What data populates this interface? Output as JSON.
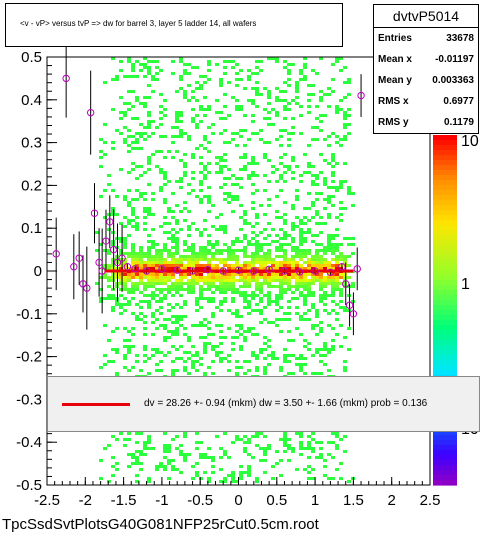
{
  "title": "<v - vP>     versus  tvP =>  dw for barrel 3, layer 5 ladder 14, all wafers",
  "stats": {
    "name": "dvtvP5014",
    "rows": [
      {
        "label": "Entries",
        "value": "33678"
      },
      {
        "label": "Mean x",
        "value": "-0.01197"
      },
      {
        "label": "Mean y",
        "value": "0.003363"
      },
      {
        "label": "RMS x",
        "value": "0.6977"
      },
      {
        "label": "RMS y",
        "value": "0.1179"
      }
    ]
  },
  "fit_label": "dv =   28.26 +-  0.94 (mkm) dw =    3.50 +-  1.66 (mkm) prob = 0.136",
  "footer": "TpcSsdSvtPlotsG40G081NFP25rCut0.5cm.root",
  "colors": {
    "fit_line": "#e8000b",
    "marker": "#c000c0"
  },
  "chart_data": {
    "type": "heatmap",
    "xlim": [
      -2.5,
      2.5
    ],
    "ylim": [
      -0.5,
      0.5
    ],
    "x_ticks": [
      "-2.5",
      "-2",
      "-1.5",
      "-1",
      "-0.5",
      "0",
      "0.5",
      "1",
      "1.5",
      "2",
      "2.5"
    ],
    "y_ticks": [
      "-0.5",
      "-0.4",
      "-0.3",
      "-0.2",
      "-0.1",
      "0",
      "0.1",
      "0.2",
      "0.3",
      "0.4",
      "0.5"
    ],
    "z_ticks": [
      "10",
      "1",
      "10"
    ],
    "fit_line": {
      "x": [
        -1.75,
        1.5
      ],
      "y": [
        0.0,
        0.0
      ]
    },
    "profile_points": [
      {
        "x": -2.38,
        "y": 0.04
      },
      {
        "x": -2.25,
        "y": 0.45
      },
      {
        "x": -2.15,
        "y": 0.01
      },
      {
        "x": -2.08,
        "y": 0.03
      },
      {
        "x": -2.03,
        "y": -0.03
      },
      {
        "x": -1.98,
        "y": -0.04
      },
      {
        "x": -1.93,
        "y": 0.37
      },
      {
        "x": -1.88,
        "y": 0.135
      },
      {
        "x": -1.82,
        "y": 0.02
      },
      {
        "x": -1.78,
        "y": 0.0
      },
      {
        "x": -1.73,
        "y": 0.07
      },
      {
        "x": -1.68,
        "y": 0.115
      },
      {
        "x": -1.63,
        "y": 0.05
      },
      {
        "x": -1.58,
        "y": 0.02
      },
      {
        "x": -1.52,
        "y": 0.03
      },
      {
        "x": -1.45,
        "y": 0.01
      },
      {
        "x": -1.35,
        "y": 0.005
      },
      {
        "x": -1.2,
        "y": 0.0
      },
      {
        "x": -1.0,
        "y": 0.005
      },
      {
        "x": -0.8,
        "y": 0.002
      },
      {
        "x": -0.6,
        "y": 0.0
      },
      {
        "x": -0.4,
        "y": 0.003
      },
      {
        "x": -0.2,
        "y": 0.0
      },
      {
        "x": 0.0,
        "y": 0.002
      },
      {
        "x": 0.2,
        "y": 0.0
      },
      {
        "x": 0.4,
        "y": 0.004
      },
      {
        "x": 0.6,
        "y": 0.0
      },
      {
        "x": 0.8,
        "y": -0.002
      },
      {
        "x": 1.0,
        "y": 0.0
      },
      {
        "x": 1.2,
        "y": -0.003
      },
      {
        "x": 1.35,
        "y": 0.01
      },
      {
        "x": 1.4,
        "y": -0.03
      },
      {
        "x": 1.45,
        "y": -0.08
      },
      {
        "x": 1.5,
        "y": -0.1
      },
      {
        "x": 1.55,
        "y": 0.005
      },
      {
        "x": 1.6,
        "y": 0.41
      }
    ]
  }
}
